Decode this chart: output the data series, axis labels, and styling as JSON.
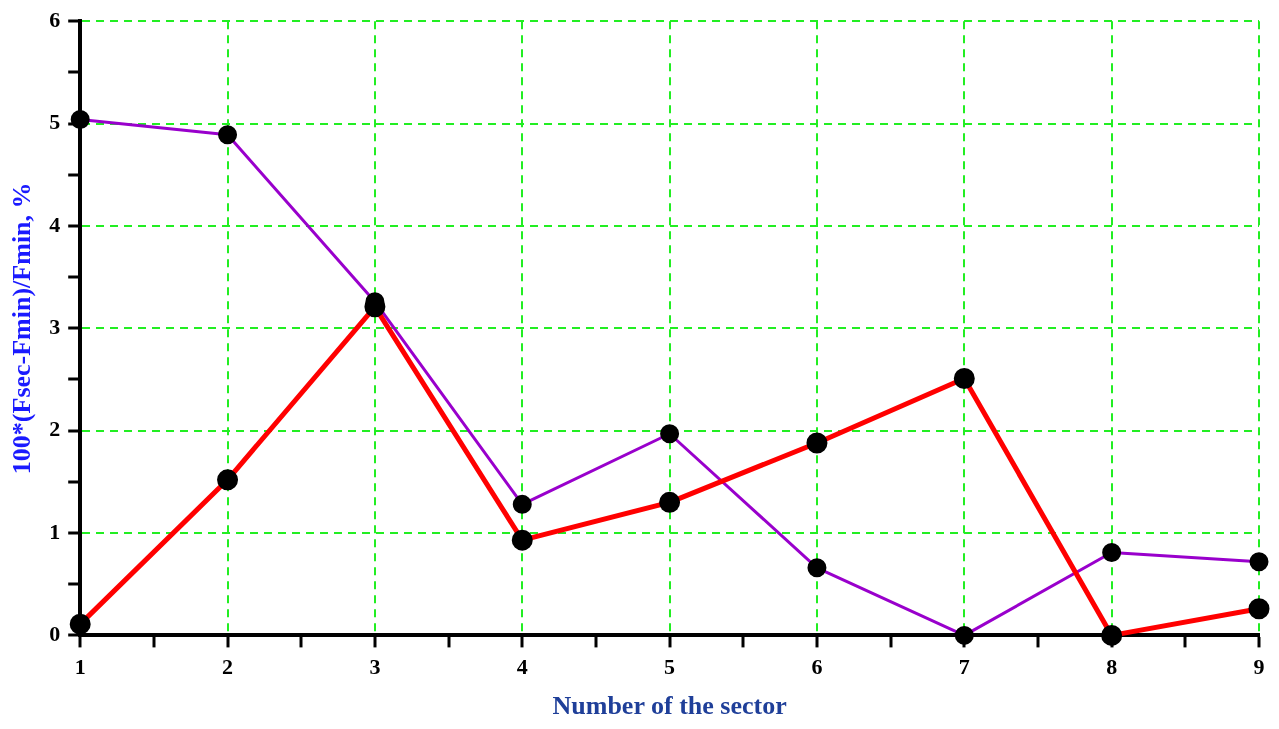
{
  "chart_data": {
    "type": "line",
    "xlabel": "Number of the sector",
    "ylabel": "100*(Fsec-Fmin)/Fmin, %",
    "x": [
      1,
      2,
      3,
      4,
      5,
      6,
      7,
      8,
      9
    ],
    "series": [
      {
        "color": "#9900cc",
        "values": [
          5.04,
          4.89,
          3.26,
          1.28,
          1.97,
          0.66,
          0,
          0.81,
          0.72
        ]
      },
      {
        "color": "#ff0000",
        "values": [
          0.11,
          1.52,
          3.21,
          0.93,
          1.3,
          1.88,
          2.51,
          0,
          0.26
        ]
      }
    ],
    "xlim": [
      1,
      9
    ],
    "xticks": [
      1,
      {
        "value": 1.5,
        "label": null
      },
      2,
      {
        "value": 2.5,
        "label": null
      },
      3,
      {
        "value": 3.5,
        "label": null
      },
      4,
      {
        "value": 4.5,
        "label": null
      },
      5,
      {
        "value": 5.5,
        "label": null
      },
      6,
      {
        "value": 6.5,
        "label": null
      },
      7,
      {
        "value": 7.5,
        "label": null
      },
      8,
      {
        "value": 8.5,
        "label": null
      },
      9
    ],
    "ylim": [
      0,
      6
    ],
    "yticks": [
      0,
      {
        "value": 0.5,
        "label": null
      },
      1,
      {
        "value": 1.5,
        "label": null
      },
      2,
      {
        "value": 2.5,
        "label": null
      },
      3,
      {
        "value": 3.5,
        "label": null
      },
      4,
      {
        "value": 4.5,
        "label": null
      },
      5,
      {
        "value": 5.5,
        "label": null
      },
      6
    ],
    "grid": true,
    "legend": false,
    "marker": "circle",
    "line_style": "solid"
  }
}
